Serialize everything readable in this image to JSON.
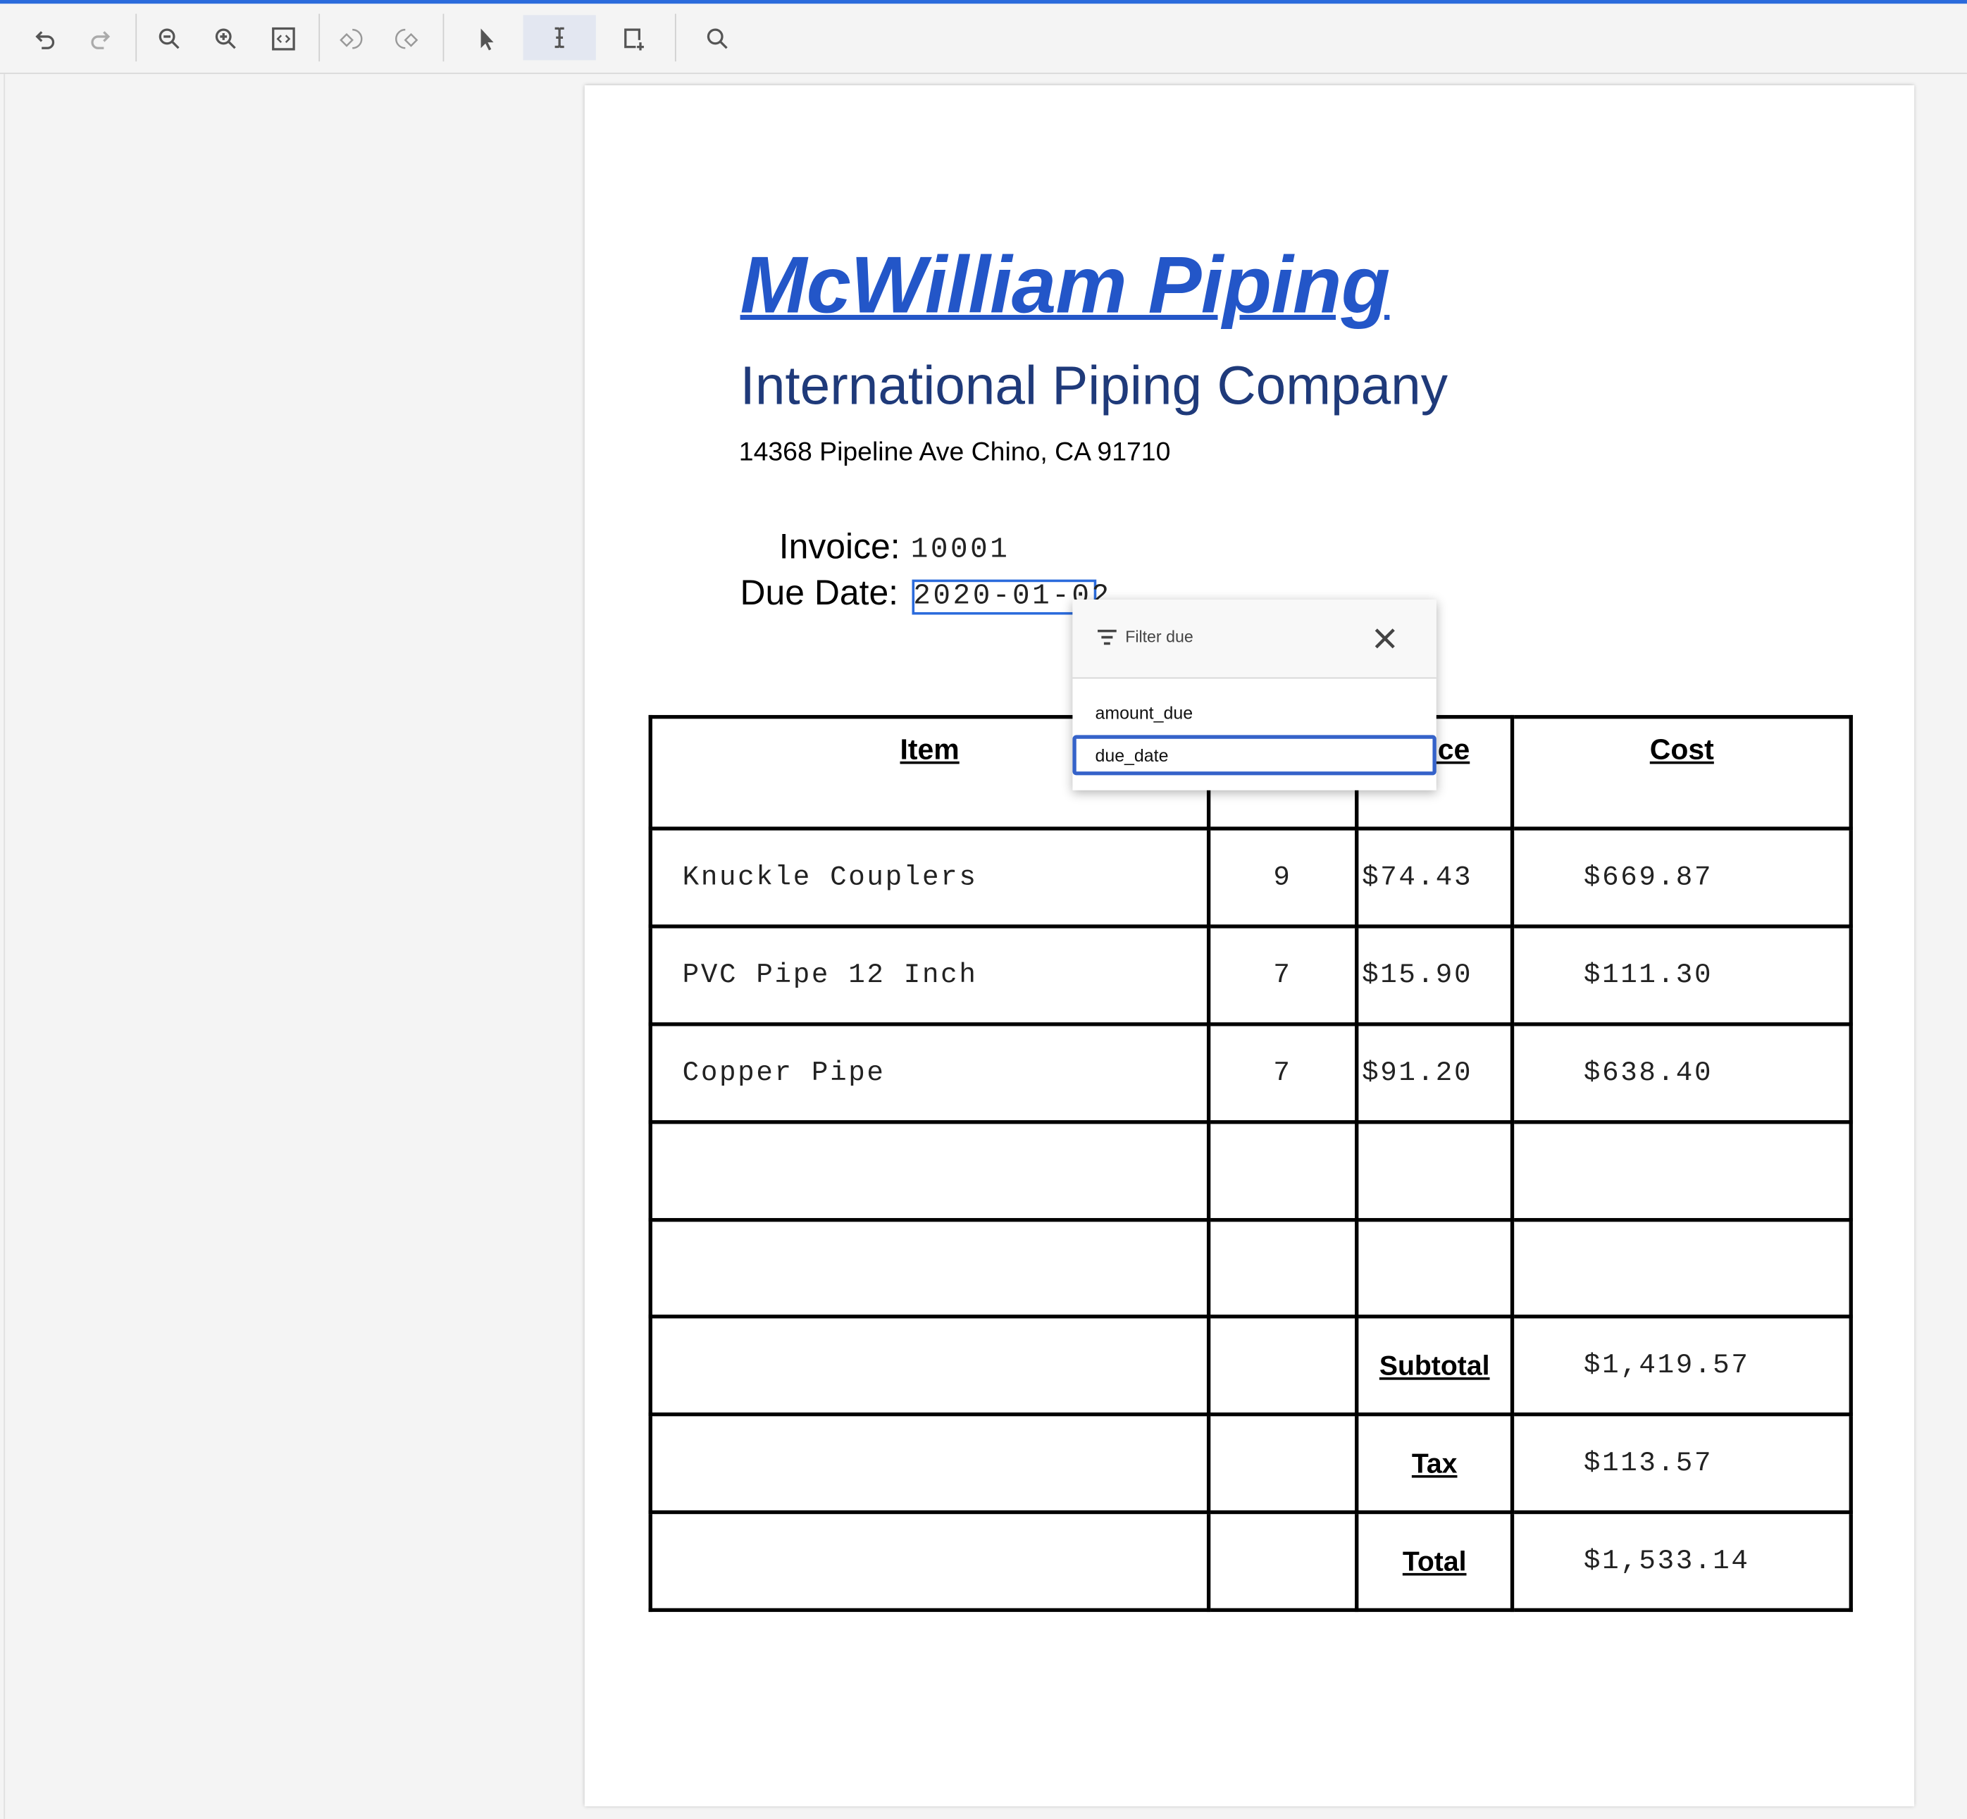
{
  "toolbar": {
    "icons": [
      "undo-icon",
      "redo-icon",
      "zoom-out-icon",
      "zoom-in-icon",
      "fit-page-icon",
      "rotate-left-icon",
      "rotate-right-icon",
      "select-pointer-icon",
      "text-cursor-icon",
      "add-region-icon",
      "search-icon"
    ],
    "active_tool": "text-cursor-icon",
    "accent_color": "#2b6bdc"
  },
  "document": {
    "title": "McWilliam Piping",
    "subtitle": "International Piping Company",
    "address": "14368 Pipeline Ave Chino, CA 91710",
    "invoice_label": "Invoice:",
    "invoice_value": "10001",
    "due_label": "Due Date:",
    "due_value": "2020-01-02",
    "table": {
      "headers": [
        "Item",
        "",
        "Price",
        "Cost"
      ],
      "rows": [
        {
          "item": "Knuckle Couplers",
          "qty": "9",
          "price": "$74.43",
          "cost": "$669.87"
        },
        {
          "item": "PVC Pipe 12 Inch",
          "qty": "7",
          "price": "$15.90",
          "cost": "$111.30"
        },
        {
          "item": "Copper Pipe",
          "qty": "7",
          "price": "$91.20",
          "cost": "$638.40"
        }
      ],
      "subtotal_label": "Subtotal",
      "subtotal": "$1,419.57",
      "tax_label": "Tax",
      "tax": "$113.57",
      "total_label": "Total",
      "total": "$1,533.14"
    }
  },
  "filter_popup": {
    "title": "Filter due",
    "options": [
      "amount_due",
      "due_date"
    ],
    "selected": "due_date"
  }
}
